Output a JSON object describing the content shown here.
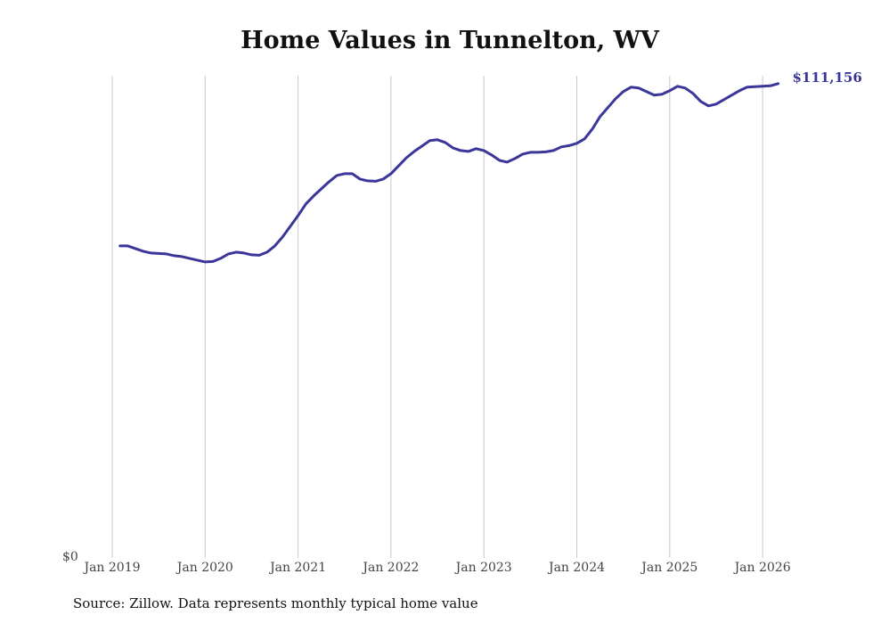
{
  "chart_data": {
    "type": "line",
    "title": "Home Values in Tunnelton, WV",
    "xlabel": "",
    "ylabel": "",
    "ylim": [
      0,
      117000
    ],
    "grid": "vertical",
    "y_tick_labels": [
      "$0"
    ],
    "x_tick_labels": [
      "Jan 2019",
      "Jan 2020",
      "Jan 2021",
      "Jan 2022",
      "Jan 2023",
      "Jan 2024",
      "Jan 2025",
      "Jan 2026"
    ],
    "end_label": "$111,156",
    "line_color": "#3b3699",
    "series": [
      {
        "name": "Typical home value",
        "start": "2019-02",
        "values": [
          72833,
          72833,
          72202,
          71570,
          71149,
          71044,
          70939,
          70518,
          70307,
          69886,
          69465,
          69044,
          69149,
          69886,
          70939,
          71360,
          71149,
          70728,
          70623,
          71360,
          72833,
          74938,
          77464,
          79990,
          82727,
          84621,
          86305,
          87989,
          89463,
          89884,
          89884,
          88621,
          88200,
          88094,
          88621,
          89884,
          91778,
          93673,
          95146,
          96409,
          97672,
          97883,
          97251,
          95988,
          95357,
          95146,
          95778,
          95357,
          94304,
          93041,
          92620,
          93462,
          94515,
          94936,
          94936,
          95041,
          95357,
          96199,
          96514,
          97041,
          98093,
          100409,
          103356,
          105461,
          107566,
          109250,
          110302,
          110092,
          109250,
          108408,
          108618,
          109460,
          110513,
          110092,
          108829,
          106934,
          105882,
          106303,
          107355,
          108408,
          109460,
          110302,
          110407,
          110513,
          110618,
          111156
        ]
      }
    ]
  },
  "source": "Source: Zillow. Data represents monthly typical home value"
}
